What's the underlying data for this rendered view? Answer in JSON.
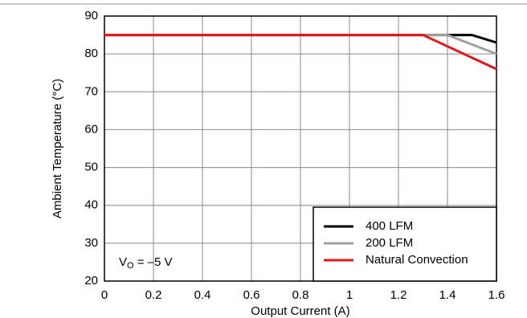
{
  "chart_data": {
    "type": "line",
    "x_label": "Output Current (A)",
    "y_label": "Ambient Temperature (°C)",
    "annotation": {
      "text": "V",
      "subscript": "O",
      "rest": " = –5 V"
    },
    "xlim": [
      0,
      1.6
    ],
    "xticks": [
      0,
      0.2,
      0.4,
      0.6,
      0.8,
      1,
      1.2,
      1.4,
      1.6
    ],
    "ylim": [
      20,
      90
    ],
    "yticks": [
      20,
      30,
      40,
      50,
      60,
      70,
      80,
      90
    ],
    "grid": true,
    "legend": "lower right",
    "series": [
      {
        "name": "400 LFM",
        "color": "#000000",
        "x": [
          0,
          1.5,
          1.6
        ],
        "values": [
          85,
          85,
          83
        ]
      },
      {
        "name": "200 LFM",
        "color": "#a0a0a0",
        "x": [
          0,
          1.4,
          1.6
        ],
        "values": [
          85,
          85,
          80
        ]
      },
      {
        "name": "Natural Convection",
        "color": "#e8141b",
        "x": [
          0,
          1.3,
          1.6
        ],
        "values": [
          85,
          85,
          76
        ]
      }
    ]
  }
}
